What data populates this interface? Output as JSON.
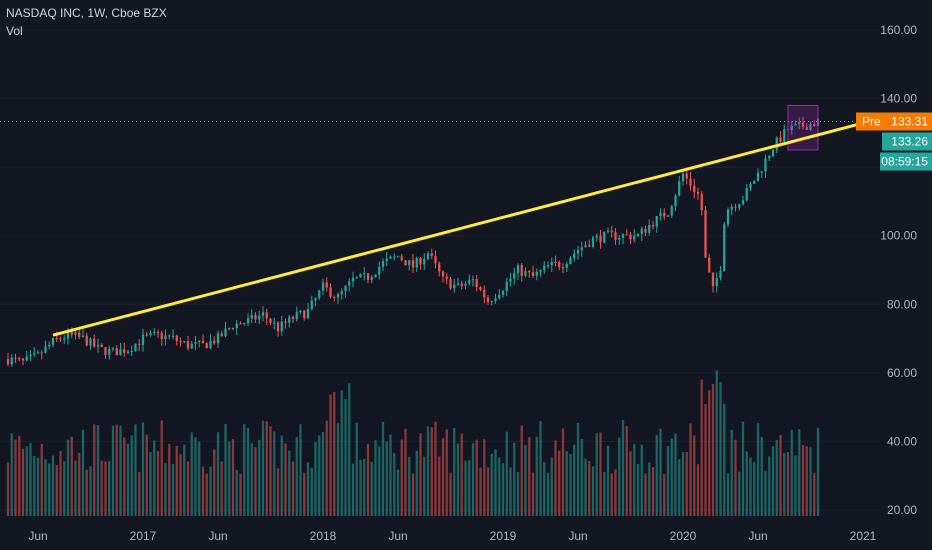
{
  "legend": {
    "symbol_line": "NASDAQ INC, 1W, Cboe BZX",
    "volume_label": "Vol"
  },
  "price_axis": {
    "ticks": [
      "160.00",
      "140.00",
      "100.00",
      "80.00",
      "60.00",
      "40.00",
      "20.00"
    ]
  },
  "time_axis": {
    "ticks": [
      "Jun",
      "2017",
      "Jun",
      "2018",
      "Jun",
      "2019",
      "Jun",
      "2020",
      "Jun",
      "2021"
    ]
  },
  "badges": {
    "pre_label": "Pre",
    "pre_value": "133.31",
    "last_value": "133.26",
    "countdown": "08:59:15"
  },
  "colors": {
    "background": "#131722",
    "up": "#26a69a",
    "down": "#ef5350",
    "trendline": "#ffeb3b",
    "pre_badge": "#f57c00",
    "last_badge": "#26a69a",
    "highlight_box": "#9c27b0"
  },
  "chart_data": {
    "type": "candlestick",
    "title": "NASDAQ INC, 1W, Cboe BZX",
    "interval": "1W",
    "ylim": [
      20,
      160
    ],
    "x_range": [
      "2016-04",
      "2021-02"
    ],
    "close_series": [
      [
        "2016-04",
        64
      ],
      [
        "2016-05",
        63
      ],
      [
        "2016-06",
        65
      ],
      [
        "2016-07",
        69
      ],
      [
        "2016-08",
        71
      ],
      [
        "2016-09",
        70
      ],
      [
        "2016-10",
        67
      ],
      [
        "2016-11",
        66
      ],
      [
        "2016-12",
        67
      ],
      [
        "2017-01",
        70
      ],
      [
        "2017-02",
        71
      ],
      [
        "2017-03",
        70
      ],
      [
        "2017-04",
        68
      ],
      [
        "2017-05",
        68
      ],
      [
        "2017-06",
        70
      ],
      [
        "2017-07",
        74
      ],
      [
        "2017-08",
        75
      ],
      [
        "2017-09",
        77
      ],
      [
        "2017-10",
        73
      ],
      [
        "2017-11",
        76
      ],
      [
        "2017-12",
        78
      ],
      [
        "2018-01",
        85
      ],
      [
        "2018-02",
        82
      ],
      [
        "2018-03",
        87
      ],
      [
        "2018-04",
        88
      ],
      [
        "2018-05",
        92
      ],
      [
        "2018-06",
        94
      ],
      [
        "2018-07",
        91
      ],
      [
        "2018-08",
        95
      ],
      [
        "2018-09",
        87
      ],
      [
        "2018-10",
        85
      ],
      [
        "2018-11",
        87
      ],
      [
        "2018-12",
        81
      ],
      [
        "2019-01",
        85
      ],
      [
        "2019-02",
        90
      ],
      [
        "2019-03",
        88
      ],
      [
        "2019-04",
        91
      ],
      [
        "2019-05",
        92
      ],
      [
        "2019-06",
        96
      ],
      [
        "2019-07",
        99
      ],
      [
        "2019-08",
        100
      ],
      [
        "2019-09",
        100
      ],
      [
        "2019-10",
        100
      ],
      [
        "2019-11",
        104
      ],
      [
        "2019-12",
        107
      ],
      [
        "2020-01",
        118
      ],
      [
        "2020-02",
        112
      ],
      [
        "2020-03",
        94
      ],
      [
        "2020-04",
        108
      ],
      [
        "2020-05",
        111
      ],
      [
        "2020-06",
        118
      ],
      [
        "2020-07",
        126
      ],
      [
        "2020-08",
        131
      ],
      [
        "2020-09",
        132
      ],
      [
        "2020-10",
        133.26
      ]
    ],
    "trendline": {
      "start": [
        "2016-07",
        71
      ],
      "end": [
        "2021-02",
        134
      ]
    },
    "highlight_box": {
      "x": [
        "2020-08",
        "2020-10"
      ],
      "y": [
        125,
        138
      ]
    },
    "last_price": 133.26,
    "premarket_price": 133.31,
    "volume_scale": [
      0,
      1
    ]
  }
}
